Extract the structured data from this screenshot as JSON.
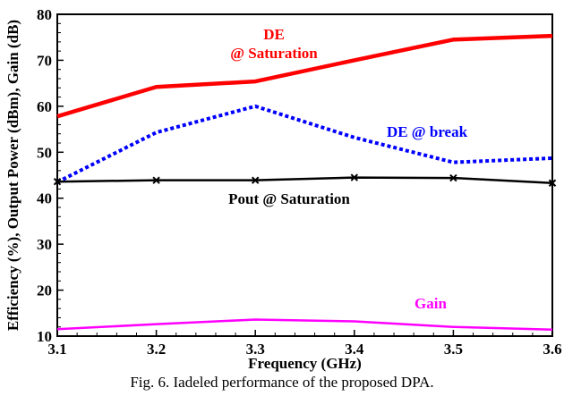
{
  "chart_data": {
    "type": "line",
    "x": [
      3.1,
      3.2,
      3.3,
      3.4,
      3.5,
      3.6
    ],
    "xlim": [
      3.1,
      3.6
    ],
    "ylim": [
      10,
      80
    ],
    "xticks": [
      "3.1",
      "3.2",
      "3.3",
      "3.4",
      "3.5",
      "3.6"
    ],
    "yticks": [
      "10",
      "20",
      "30",
      "40",
      "50",
      "60",
      "70",
      "80"
    ],
    "xlabel": "Frequency (GHz)",
    "ylabel": "Efficiency (%), Output Power (dBm), Gain (dB)",
    "grid": false,
    "series": [
      {
        "key": "de_sat",
        "color": "#ff0000",
        "style": "solid",
        "values": [
          57.8,
          64.2,
          65.4,
          70.0,
          74.5,
          75.3
        ]
      },
      {
        "key": "de_break",
        "color": "#0000ff",
        "style": "dotted",
        "values": [
          43.5,
          54.3,
          60.0,
          53.2,
          47.8,
          48.7
        ]
      },
      {
        "key": "pout_sat",
        "color": "#000000",
        "style": "solid-markers",
        "values": [
          43.6,
          43.9,
          43.9,
          44.5,
          44.4,
          43.3
        ]
      },
      {
        "key": "gain",
        "color": "#ff00ff",
        "style": "solid",
        "values": [
          11.5,
          12.6,
          13.6,
          13.2,
          12.0,
          11.4
        ]
      }
    ],
    "annotations": [
      {
        "key": "de_sat",
        "lines": [
          "DE",
          "@ Saturation"
        ],
        "color": "#ff0000"
      },
      {
        "key": "de_break",
        "lines": [
          "DE @ break"
        ],
        "color": "#0000ff"
      },
      {
        "key": "pout_sat",
        "lines": [
          "Pout @ Saturation"
        ],
        "color": "#000000"
      },
      {
        "key": "gain",
        "lines": [
          "Gain"
        ],
        "color": "#ff00ff"
      }
    ]
  },
  "caption": "Fig. 6. Iadeled performance of the proposed DPA."
}
